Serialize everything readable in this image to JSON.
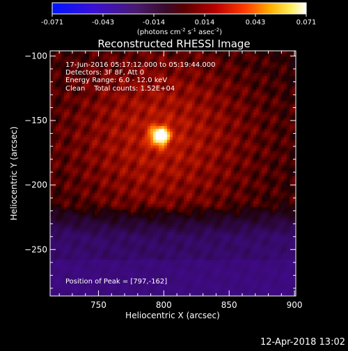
{
  "colorbar": {
    "ticks": [
      "-0.071",
      "-0.043",
      "-0.014",
      "0.014",
      "0.043",
      "0.071"
    ],
    "unit_base": "(photons cm",
    "unit_exp1": "-2",
    "unit_mid": " s",
    "unit_exp2": "-1",
    "unit_mid2": " asec",
    "unit_exp3": "-2",
    "unit_close": ")"
  },
  "annotations": {
    "time_range": "17-Jun-2016 05:17:12.000 to 05:19:44.000",
    "detectors": "Detectors: 3F 8F, Att 0",
    "energy": "Energy Range: 6.0 - 12.0 keV",
    "clean_line": "Clean    Total counts: 1.52E+04",
    "peak": "Position of Peak = [797,-162]"
  },
  "footer": "12-Apr-2018 13:02",
  "colors": {
    "background": "#000000",
    "text": "#ffffff"
  },
  "chart_data": {
    "type": "heatmap",
    "title": "Reconstructed RHESSI Image",
    "xlabel": "Heliocentric X (arcsec)",
    "ylabel": "Heliocentric Y (arcsec)",
    "xlim": [
      713,
      901
    ],
    "ylim": [
      -286,
      -96
    ],
    "x_ticks": [
      750,
      800,
      850,
      900
    ],
    "y_ticks": [
      -100,
      -150,
      -200,
      -250
    ],
    "colorbar_range": [
      -0.071,
      0.071
    ],
    "colormap": "hot-purple",
    "peak_position": [
      797,
      -162
    ],
    "source": {
      "x": 797,
      "y": -162,
      "sigma_core": 5,
      "sigma_halo": 38
    }
  }
}
